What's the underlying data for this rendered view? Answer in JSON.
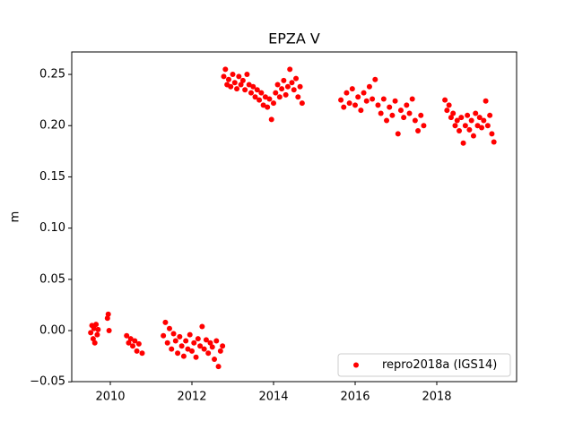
{
  "chart_data": {
    "type": "scatter",
    "title": "EPZA V",
    "y_label": "m",
    "xlim": [
      2009.055,
      2019.956
    ],
    "ylim": [
      -0.0498,
      0.2719
    ],
    "xticks": [
      2010,
      2012,
      2014,
      2016,
      2018
    ],
    "yticks": [
      {
        "value": -0.05,
        "label": "−0.05"
      },
      {
        "value": 0,
        "label": "0.00"
      },
      0.05,
      {
        "value": 0.1,
        "label": "0.10"
      },
      0.15,
      {
        "value": 0.2,
        "label": "0.20"
      },
      0.25
    ],
    "legend": "lower right",
    "series": [
      {
        "name": "repro2018a (IGS14)",
        "color": "#ff0000",
        "x": [
          2009.52,
          2009.55,
          2009.58,
          2009.6,
          2009.62,
          2009.65,
          2009.68,
          2009.7,
          2009.93,
          2009.95,
          2009.97,
          2010.4,
          2010.45,
          2010.5,
          2010.55,
          2010.6,
          2010.65,
          2010.7,
          2010.78,
          2011.3,
          2011.35,
          2011.4,
          2011.45,
          2011.5,
          2011.55,
          2011.6,
          2011.65,
          2011.7,
          2011.75,
          2011.8,
          2011.85,
          2011.9,
          2011.95,
          2012.0,
          2012.05,
          2012.1,
          2012.15,
          2012.2,
          2012.25,
          2012.3,
          2012.35,
          2012.4,
          2012.45,
          2012.5,
          2012.55,
          2012.6,
          2012.65,
          2012.7,
          2012.75,
          2012.78,
          2012.82,
          2012.86,
          2012.9,
          2012.95,
          2013.0,
          2013.05,
          2013.1,
          2013.15,
          2013.2,
          2013.25,
          2013.3,
          2013.35,
          2013.4,
          2013.45,
          2013.5,
          2013.55,
          2013.6,
          2013.65,
          2013.7,
          2013.75,
          2013.8,
          2013.85,
          2013.9,
          2013.95,
          2014.0,
          2014.05,
          2014.1,
          2014.15,
          2014.2,
          2014.25,
          2014.3,
          2014.35,
          2014.4,
          2014.45,
          2014.5,
          2014.55,
          2014.6,
          2014.65,
          2014.7,
          2015.65,
          2015.72,
          2015.79,
          2015.86,
          2015.93,
          2016.0,
          2016.07,
          2016.14,
          2016.21,
          2016.28,
          2016.35,
          2016.42,
          2016.49,
          2016.56,
          2016.63,
          2016.7,
          2016.77,
          2016.84,
          2016.91,
          2016.98,
          2017.05,
          2017.12,
          2017.19,
          2017.26,
          2017.33,
          2017.4,
          2017.47,
          2017.54,
          2017.61,
          2017.68,
          2018.2,
          2018.25,
          2018.3,
          2018.35,
          2018.4,
          2018.45,
          2018.5,
          2018.55,
          2018.6,
          2018.65,
          2018.7,
          2018.75,
          2018.8,
          2018.85,
          2018.9,
          2018.95,
          2019.0,
          2019.05,
          2019.1,
          2019.15,
          2019.2,
          2019.25,
          2019.3,
          2019.35,
          2019.4
        ],
        "values": [
          -0.002,
          0.005,
          -0.008,
          0.002,
          -0.012,
          0.006,
          -0.004,
          0.001,
          0.012,
          0.016,
          0.0,
          -0.005,
          -0.012,
          -0.008,
          -0.015,
          -0.01,
          -0.02,
          -0.013,
          -0.022,
          -0.005,
          0.008,
          -0.012,
          0.002,
          -0.018,
          -0.003,
          -0.01,
          -0.022,
          -0.006,
          -0.015,
          -0.025,
          -0.01,
          -0.018,
          -0.004,
          -0.02,
          -0.012,
          -0.026,
          -0.008,
          -0.015,
          0.004,
          -0.018,
          -0.009,
          -0.022,
          -0.012,
          -0.016,
          -0.028,
          -0.01,
          -0.035,
          -0.02,
          -0.015,
          0.248,
          0.255,
          0.24,
          0.245,
          0.238,
          0.25,
          0.242,
          0.236,
          0.248,
          0.24,
          0.244,
          0.235,
          0.25,
          0.24,
          0.232,
          0.238,
          0.228,
          0.235,
          0.225,
          0.232,
          0.22,
          0.228,
          0.218,
          0.226,
          0.206,
          0.222,
          0.232,
          0.24,
          0.228,
          0.236,
          0.244,
          0.23,
          0.238,
          0.255,
          0.242,
          0.235,
          0.246,
          0.228,
          0.238,
          0.222,
          0.225,
          0.218,
          0.232,
          0.222,
          0.236,
          0.22,
          0.228,
          0.215,
          0.232,
          0.224,
          0.238,
          0.226,
          0.245,
          0.22,
          0.212,
          0.226,
          0.205,
          0.218,
          0.21,
          0.224,
          0.192,
          0.215,
          0.208,
          0.22,
          0.212,
          0.226,
          0.205,
          0.195,
          0.21,
          0.2,
          0.225,
          0.215,
          0.22,
          0.208,
          0.212,
          0.2,
          0.205,
          0.195,
          0.208,
          0.183,
          0.2,
          0.21,
          0.196,
          0.205,
          0.19,
          0.212,
          0.2,
          0.208,
          0.198,
          0.205,
          0.224,
          0.2,
          0.21,
          0.192,
          0.184
        ]
      }
    ]
  }
}
